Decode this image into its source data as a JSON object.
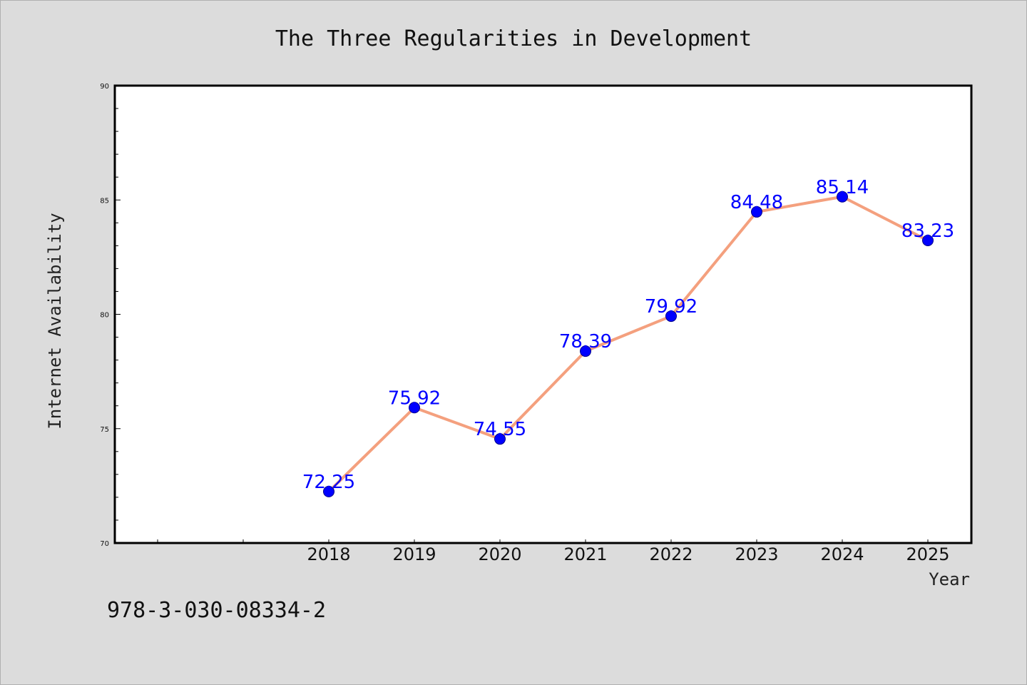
{
  "chart_data": {
    "type": "line",
    "title": "The Three Regularities in Development",
    "xlabel": "Year",
    "ylabel": "Internet Availability",
    "x": [
      "2018",
      "2019",
      "2020",
      "2021",
      "2022",
      "2023",
      "2024",
      "2025"
    ],
    "series": [
      {
        "values": [
          72.25,
          75.92,
          74.55,
          78.39,
          79.92,
          84.48,
          85.14,
          83.23
        ]
      }
    ],
    "data_labels": [
      "72.25",
      "75.92",
      "74.55",
      "78.39",
      "79.92",
      "84.48",
      "85.14",
      "83.23"
    ],
    "ylim": [
      70,
      90
    ],
    "yticks": [
      "70",
      "75",
      "80",
      "85",
      "90"
    ],
    "grid": false,
    "legend": "none",
    "colors": {
      "line": "#f4a07e",
      "marker": "#0000ff",
      "data_label": "#0000ff",
      "background": "#dcdcdc",
      "plot_area": "#ffffff"
    }
  },
  "footer": {
    "isbn": "978-3-030-08334-2"
  }
}
